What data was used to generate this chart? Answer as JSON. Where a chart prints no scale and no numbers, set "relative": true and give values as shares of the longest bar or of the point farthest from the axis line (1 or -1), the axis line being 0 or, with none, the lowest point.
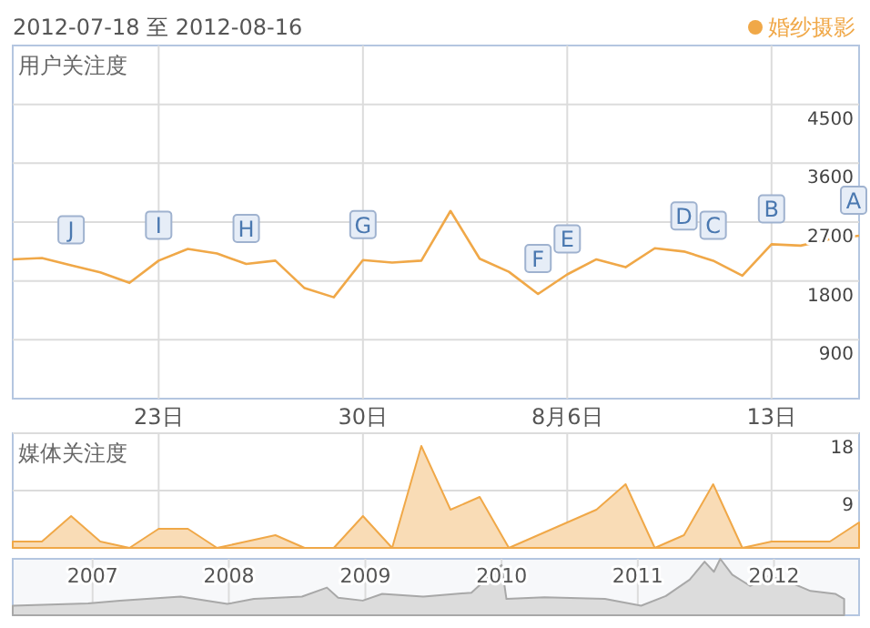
{
  "chart_data": [
    {
      "type": "line",
      "title": "2012-07-18 至 2012-08-16",
      "ylabel": "用户关注度",
      "legend": "top right",
      "grid": true,
      "x": [
        "2012-07-18",
        "2012-07-19",
        "2012-07-20",
        "2012-07-21",
        "2012-07-22",
        "2012-07-23",
        "2012-07-24",
        "2012-07-25",
        "2012-07-26",
        "2012-07-27",
        "2012-07-28",
        "2012-07-29",
        "2012-07-30",
        "2012-07-31",
        "2012-08-01",
        "2012-08-02",
        "2012-08-03",
        "2012-08-04",
        "2012-08-05",
        "2012-08-06",
        "2012-08-07",
        "2012-08-08",
        "2012-08-09",
        "2012-08-10",
        "2012-08-11",
        "2012-08-12",
        "2012-08-13",
        "2012-08-14",
        "2012-08-15",
        "2012-08-16"
      ],
      "xlim": [
        "2012-07-18",
        "2012-08-16"
      ],
      "xticks": [
        {
          "value": "2012-07-23",
          "label": "23日"
        },
        {
          "value": "2012-07-30",
          "label": "30日"
        },
        {
          "value": "2012-08-06",
          "label": "8月6日"
        },
        {
          "value": "2012-08-13",
          "label": "13日"
        }
      ],
      "ylim": [
        0,
        5400
      ],
      "yticks": [
        900,
        1800,
        2700,
        3600,
        4500
      ],
      "series": [
        {
          "name": "婚纱摄影",
          "color": "#f0a848",
          "values": [
            2130,
            2150,
            2040,
            1930,
            1770,
            2110,
            2290,
            2220,
            2060,
            2110,
            1690,
            1550,
            2120,
            2080,
            2110,
            2870,
            2140,
            1940,
            1600,
            1900,
            2130,
            2010,
            2300,
            2250,
            2110,
            1880,
            2360,
            2340,
            2440,
            2490
          ]
        }
      ],
      "annotations": [
        {
          "text": "J",
          "x": "2012-07-20",
          "y": 2040
        },
        {
          "text": "I",
          "x": "2012-07-23",
          "y": 2110
        },
        {
          "text": "H",
          "x": "2012-07-26",
          "y": 2060
        },
        {
          "text": "G",
          "x": "2012-07-30",
          "y": 2120
        },
        {
          "text": "F",
          "x": "2012-08-05",
          "y": 1600
        },
        {
          "text": "E",
          "x": "2012-08-06",
          "y": 1900
        },
        {
          "text": "D",
          "x": "2012-08-10",
          "y": 2250
        },
        {
          "text": "C",
          "x": "2012-08-11",
          "y": 2110
        },
        {
          "text": "B",
          "x": "2012-08-13",
          "y": 2360
        },
        {
          "text": "A",
          "x": "2012-08-16",
          "y": 2490
        }
      ]
    },
    {
      "type": "area",
      "ylabel": "媒体关注度",
      "grid": true,
      "tick_labels": "y",
      "color": "#f0a848",
      "x": [
        "2012-07-18",
        "2012-07-19",
        "2012-07-20",
        "2012-07-21",
        "2012-07-22",
        "2012-07-23",
        "2012-07-24",
        "2012-07-25",
        "2012-07-26",
        "2012-07-27",
        "2012-07-28",
        "2012-07-29",
        "2012-07-30",
        "2012-07-31",
        "2012-08-01",
        "2012-08-02",
        "2012-08-03",
        "2012-08-04",
        "2012-08-05",
        "2012-08-06",
        "2012-08-07",
        "2012-08-08",
        "2012-08-09",
        "2012-08-10",
        "2012-08-11",
        "2012-08-12",
        "2012-08-13",
        "2012-08-14",
        "2012-08-15",
        "2012-08-16"
      ],
      "xlim": [
        "2012-07-18",
        "2012-08-16"
      ],
      "xticks": [
        {
          "value": "2012-07-23",
          "label": null
        },
        {
          "value": "2012-07-30",
          "label": null
        },
        {
          "value": "2012-08-06",
          "label": null
        },
        {
          "value": "2012-08-13",
          "label": null
        }
      ],
      "ylim": [
        0,
        18
      ],
      "yticks": [
        9,
        18
      ],
      "values": [
        1,
        1,
        5,
        1,
        0,
        3,
        3,
        0,
        1,
        2,
        0,
        0,
        5,
        0,
        16,
        6,
        8,
        0,
        2,
        4,
        6,
        10,
        0,
        2,
        10,
        0,
        1,
        1,
        1,
        4
      ]
    },
    {
      "type": "area",
      "relative": true,
      "grid": "x",
      "tick_labels": "x",
      "color": "#a8a8a8",
      "x": [
        "2006-06-01",
        "2006-12-20",
        "2007-03-15",
        "2007-08-25",
        "2007-12-28",
        "2008-03-08",
        "2008-07-15",
        "2008-09-20",
        "2008-10-20",
        "2008-12-25",
        "2009-02-15",
        "2009-06-05",
        "2009-10-12",
        "2010-01-01",
        "2010-01-14",
        "2010-04-26",
        "2010-10-05",
        "2011-01-10",
        "2011-03-17",
        "2011-05-20",
        "2011-06-29",
        "2011-07-24",
        "2011-08-10",
        "2011-09-11",
        "2011-10-29",
        "2011-12-17",
        "2012-02-03",
        "2012-04-08",
        "2012-06-13",
        "2012-07-07"
      ],
      "xlim": [
        "2006-06-01",
        "2012-08-16"
      ],
      "xticks": [
        {
          "value": "2007-01-01",
          "label": "2007"
        },
        {
          "value": "2008-01-01",
          "label": "2008"
        },
        {
          "value": "2009-01-01",
          "label": "2009"
        },
        {
          "value": "2010-01-01",
          "label": "2010"
        },
        {
          "value": "2011-01-01",
          "label": "2011"
        },
        {
          "value": "2012-01-01",
          "label": "2012"
        }
      ],
      "values": [
        0.17,
        0.21,
        0.26,
        0.33,
        0.2,
        0.29,
        0.33,
        0.49,
        0.31,
        0.26,
        0.38,
        0.33,
        0.4,
        0.89,
        0.29,
        0.32,
        0.29,
        0.17,
        0.34,
        0.63,
        0.95,
        0.77,
        1,
        0.72,
        0.52,
        0.69,
        0.61,
        0.43,
        0.38,
        0.29
      ]
    }
  ]
}
